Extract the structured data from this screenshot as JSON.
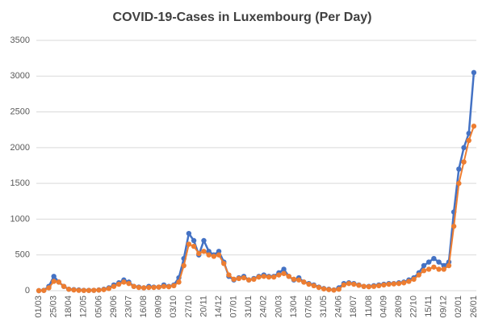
{
  "chart_data": {
    "type": "line",
    "title": "COVID-19-Cases in Luxembourg (Per Day)",
    "categories": [
      "01/03",
      null,
      null,
      "25/03",
      null,
      null,
      "18/04",
      null,
      null,
      "12/05",
      null,
      null,
      "05/06",
      null,
      null,
      "29/06",
      null,
      null,
      "23/07",
      null,
      null,
      "16/08",
      null,
      null,
      "09/09",
      null,
      null,
      "03/10",
      null,
      null,
      "27/10",
      null,
      null,
      "20/11",
      null,
      null,
      "14/12",
      null,
      null,
      "07/01",
      null,
      null,
      "31/01",
      null,
      null,
      "24/02",
      null,
      null,
      "20/03",
      null,
      null,
      "13/04",
      null,
      null,
      "07/05",
      null,
      null,
      "31/05",
      null,
      null,
      "24/06",
      null,
      null,
      "18/07",
      null,
      null,
      "11/08",
      null,
      null,
      "04/09",
      null,
      null,
      "28/09",
      null,
      null,
      "22/10",
      null,
      null,
      "15/11",
      null,
      null,
      "09/12",
      null,
      null,
      "02/01",
      null,
      null,
      "26/01"
    ],
    "series": [
      {
        "color": "#4472c4",
        "values": [
          0,
          5,
          60,
          200,
          120,
          60,
          20,
          15,
          10,
          5,
          5,
          5,
          10,
          20,
          40,
          80,
          110,
          150,
          120,
          60,
          50,
          40,
          60,
          50,
          50,
          80,
          60,
          80,
          180,
          450,
          800,
          700,
          500,
          700,
          550,
          500,
          550,
          400,
          200,
          150,
          180,
          200,
          150,
          170,
          200,
          220,
          200,
          200,
          250,
          300,
          200,
          150,
          180,
          120,
          100,
          80,
          50,
          30,
          20,
          10,
          40,
          100,
          110,
          100,
          80,
          60,
          60,
          70,
          80,
          90,
          100,
          100,
          110,
          120,
          150,
          180,
          250,
          350,
          400,
          450,
          400,
          350,
          400,
          1100,
          1700,
          2000,
          2200,
          3050
        ]
      },
      {
        "color": "#ed7d31",
        "values": [
          0,
          3,
          40,
          130,
          120,
          60,
          20,
          10,
          5,
          3,
          3,
          5,
          8,
          15,
          30,
          60,
          90,
          120,
          100,
          60,
          45,
          40,
          45,
          45,
          50,
          60,
          55,
          70,
          120,
          350,
          650,
          620,
          520,
          550,
          500,
          480,
          500,
          380,
          220,
          160,
          170,
          180,
          150,
          160,
          190,
          200,
          190,
          190,
          220,
          240,
          200,
          160,
          150,
          120,
          90,
          70,
          45,
          25,
          15,
          8,
          20,
          80,
          100,
          90,
          75,
          60,
          55,
          60,
          70,
          80,
          90,
          95,
          100,
          110,
          130,
          160,
          220,
          280,
          300,
          330,
          300,
          300,
          350,
          900,
          1500,
          1800,
          2100,
          2300
        ]
      }
    ],
    "ylim": [
      0,
      3500
    ],
    "yticks": [
      0,
      500,
      1000,
      1500,
      2000,
      2500,
      3000,
      3500
    ],
    "grid": true
  }
}
